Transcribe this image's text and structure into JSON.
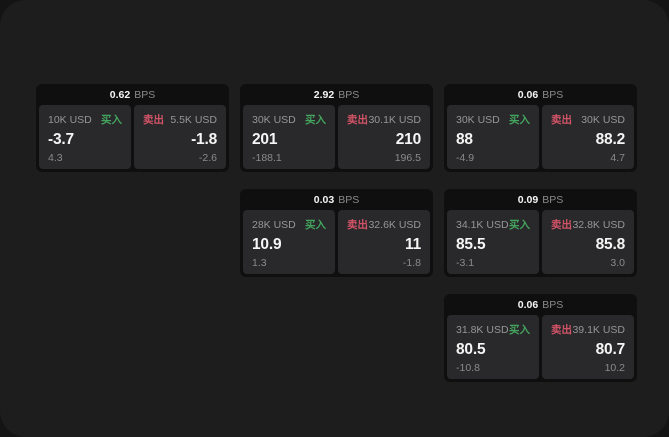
{
  "theme": {
    "page_bg": "#141414",
    "window_bg": "#1d1d1e",
    "card_bg": "#0f0f10",
    "panel_bg": "#29292b",
    "label_color": "#969696",
    "value_color": "#f5f5f5",
    "muted_color": "#8a8a8a",
    "buy_color": "#44a45e",
    "sell_color": "#d15366"
  },
  "labels": {
    "bps_suffix": "BPS",
    "buy": "买入",
    "sell": "卖出"
  },
  "cards": [
    {
      "row": 1,
      "col": 1,
      "bps": "0.62",
      "buy": {
        "amount": "10K USD",
        "value": "-3.7",
        "sub": "4.3"
      },
      "sell": {
        "amount": "5.5K USD",
        "value": "-1.8",
        "sub": "-2.6"
      }
    },
    {
      "row": 1,
      "col": 2,
      "bps": "2.92",
      "buy": {
        "amount": "30K USD",
        "value": "201",
        "sub": "-188.1"
      },
      "sell": {
        "amount": "30.1K USD",
        "value": "210",
        "sub": "196.5"
      }
    },
    {
      "row": 1,
      "col": 3,
      "bps": "0.06",
      "buy": {
        "amount": "30K USD",
        "value": "88",
        "sub": "-4.9"
      },
      "sell": {
        "amount": "30K USD",
        "value": "88.2",
        "sub": "4.7"
      }
    },
    {
      "row": 2,
      "col": 2,
      "bps": "0.03",
      "buy": {
        "amount": "28K USD",
        "value": "10.9",
        "sub": "1.3"
      },
      "sell": {
        "amount": "32.6K USD",
        "value": "11",
        "sub": "-1.8"
      }
    },
    {
      "row": 2,
      "col": 3,
      "bps": "0.09",
      "buy": {
        "amount": "34.1K USD",
        "value": "85.5",
        "sub": "-3.1"
      },
      "sell": {
        "amount": "32.8K USD",
        "value": "85.8",
        "sub": "3.0"
      }
    },
    {
      "row": 3,
      "col": 3,
      "bps": "0.06",
      "buy": {
        "amount": "31.8K USD",
        "value": "80.5",
        "sub": "-10.8"
      },
      "sell": {
        "amount": "39.1K USD",
        "value": "80.7",
        "sub": "10.2"
      }
    }
  ]
}
